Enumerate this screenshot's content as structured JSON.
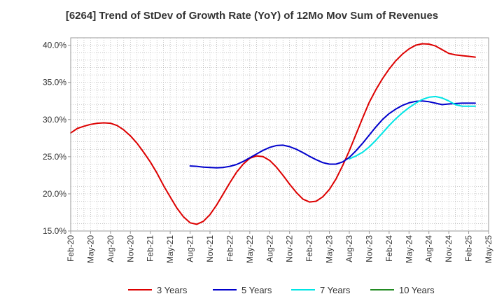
{
  "chart_data": {
    "type": "line",
    "title": "[6264]  Trend of StDev of Growth Rate (YoY) of 12Mo Mov Sum of Revenues",
    "xlabel": "",
    "ylabel": "",
    "x_ticks": [
      "Feb-20",
      "May-20",
      "Aug-20",
      "Nov-20",
      "Feb-21",
      "May-21",
      "Aug-21",
      "Nov-21",
      "Feb-22",
      "May-22",
      "Aug-22",
      "Nov-22",
      "Feb-23",
      "May-23",
      "Aug-23",
      "Nov-23",
      "Feb-24",
      "May-24",
      "Aug-24",
      "Nov-24",
      "Feb-25",
      "May-25"
    ],
    "y_ticks": [
      "15.0%",
      "20.0%",
      "25.0%",
      "30.0%",
      "35.0%",
      "40.0%"
    ],
    "ylim": [
      15,
      41
    ],
    "xlim_months": [
      0,
      63
    ],
    "grid": true,
    "legend_position": "bottom",
    "series": [
      {
        "name": "3 Years",
        "color": "#dd0000",
        "x": [
          0,
          1,
          2,
          3,
          4,
          5,
          6,
          7,
          8,
          9,
          10,
          11,
          12,
          13,
          14,
          15,
          16,
          17,
          18,
          19,
          20,
          21,
          22,
          23,
          24,
          25,
          26,
          27,
          28,
          29,
          30,
          31,
          32,
          33,
          34,
          35,
          36,
          37,
          38,
          39,
          40,
          41,
          42,
          43,
          44,
          45,
          46,
          47,
          48,
          49,
          50,
          51,
          52,
          53,
          54,
          55,
          56,
          57,
          58,
          59,
          60,
          61
        ],
        "values": [
          28.2,
          28.8,
          29.1,
          29.35,
          29.5,
          29.55,
          29.5,
          29.2,
          28.6,
          27.8,
          26.8,
          25.6,
          24.3,
          22.8,
          21.1,
          19.6,
          18.1,
          16.9,
          16.1,
          15.9,
          16.3,
          17.2,
          18.5,
          20.0,
          21.5,
          22.9,
          24.0,
          24.8,
          25.1,
          25.0,
          24.5,
          23.6,
          22.5,
          21.3,
          20.2,
          19.3,
          18.9,
          19.0,
          19.6,
          20.6,
          22.0,
          23.8,
          25.8,
          28.0,
          30.2,
          32.3,
          34.0,
          35.5,
          36.8,
          37.9,
          38.8,
          39.5,
          40.0,
          40.2,
          40.15,
          39.9,
          39.4,
          38.9,
          38.7,
          38.6,
          38.5,
          38.4
        ]
      },
      {
        "name": "5 Years",
        "color": "#0000cc",
        "x": [
          18,
          19,
          20,
          21,
          22,
          23,
          24,
          25,
          26,
          27,
          28,
          29,
          30,
          31,
          32,
          33,
          34,
          35,
          36,
          37,
          38,
          39,
          40,
          41,
          42,
          43,
          44,
          45,
          46,
          47,
          48,
          49,
          50,
          51,
          52,
          53,
          54,
          55,
          56,
          57,
          58,
          59,
          60,
          61
        ],
        "values": [
          23.75,
          23.7,
          23.6,
          23.55,
          23.5,
          23.55,
          23.7,
          23.95,
          24.35,
          24.85,
          25.35,
          25.85,
          26.25,
          26.5,
          26.55,
          26.35,
          26.0,
          25.55,
          25.05,
          24.6,
          24.2,
          24.0,
          24.0,
          24.3,
          24.9,
          25.8,
          26.8,
          27.9,
          29.0,
          30.0,
          30.8,
          31.4,
          31.9,
          32.25,
          32.45,
          32.5,
          32.4,
          32.2,
          32.0,
          32.1,
          32.15,
          32.2,
          32.2,
          32.2
        ]
      },
      {
        "name": "7 Years",
        "color": "#00e5e5",
        "x": [
          42,
          43,
          44,
          45,
          46,
          47,
          48,
          49,
          50,
          51,
          52,
          53,
          54,
          55,
          56,
          57,
          58,
          59,
          60,
          61
        ],
        "values": [
          24.7,
          25.1,
          25.6,
          26.3,
          27.2,
          28.2,
          29.2,
          30.1,
          30.9,
          31.6,
          32.2,
          32.7,
          33.0,
          33.1,
          32.9,
          32.5,
          32.0,
          31.8,
          31.8,
          31.8
        ]
      },
      {
        "name": "10 Years",
        "color": "#228b22",
        "x": [],
        "values": []
      }
    ]
  }
}
